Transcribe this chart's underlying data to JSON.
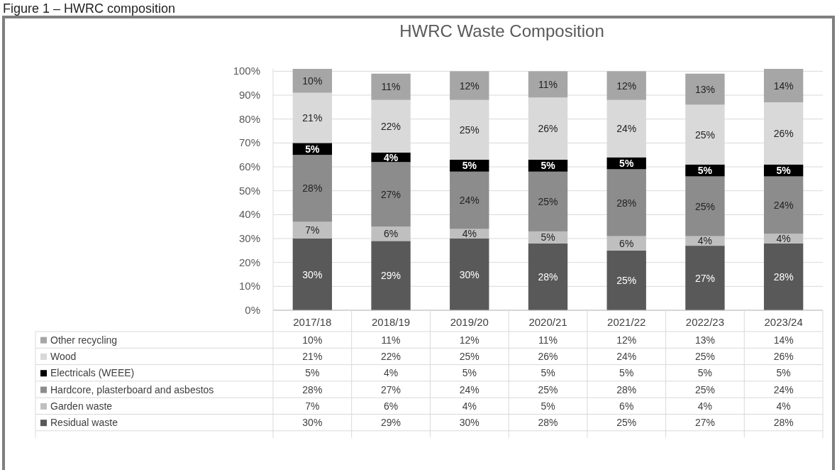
{
  "chart_data": {
    "type": "bar",
    "stacked": true,
    "title": "HWRC Waste Composition",
    "annotations": [
      "Figure 1 – HWRC composition"
    ],
    "categories": [
      "2017/18",
      "2018/19",
      "2019/20",
      "2020/21",
      "2021/22",
      "2022/23",
      "2023/24"
    ],
    "series": [
      {
        "name": "Residual waste",
        "color": "#595959",
        "values": [
          30,
          29,
          30,
          28,
          25,
          27,
          28
        ],
        "value_labels": [
          "30%",
          "29%",
          "30%",
          "28%",
          "25%",
          "27%",
          "28%"
        ]
      },
      {
        "name": "Garden waste",
        "color": "#bfbfbf",
        "values": [
          7,
          6,
          4,
          5,
          6,
          4,
          4
        ],
        "value_labels": [
          "7%",
          "6%",
          "4%",
          "5%",
          "6%",
          "4%",
          "4%"
        ]
      },
      {
        "name": "Hardcore, plasterboard and asbestos",
        "color": "#8c8c8c",
        "values": [
          28,
          27,
          24,
          25,
          28,
          25,
          24
        ],
        "value_labels": [
          "28%",
          "27%",
          "24%",
          "25%",
          "28%",
          "25%",
          "24%"
        ]
      },
      {
        "name": "Electricals (WEEE)",
        "color": "#000000",
        "values": [
          5,
          4,
          5,
          5,
          5,
          5,
          5
        ],
        "value_labels": [
          "5%",
          "4%",
          "5%",
          "5%",
          "5%",
          "5%",
          "5%"
        ]
      },
      {
        "name": "Wood",
        "color": "#d9d9d9",
        "values": [
          21,
          22,
          25,
          26,
          24,
          25,
          26
        ],
        "value_labels": [
          "21%",
          "22%",
          "25%",
          "26%",
          "24%",
          "25%",
          "26%"
        ]
      },
      {
        "name": "Other recycling",
        "color": "#a6a6a6",
        "values": [
          10,
          11,
          12,
          11,
          12,
          13,
          14
        ],
        "value_labels": [
          "10%",
          "11%",
          "12%",
          "11%",
          "12%",
          "13%",
          "14%"
        ]
      }
    ],
    "ylim": [
      0,
      101
    ],
    "yticks": [
      {
        "value": 0,
        "label": "0%"
      },
      {
        "value": 10,
        "label": "10%"
      },
      {
        "value": 20,
        "label": "20%"
      },
      {
        "value": 30,
        "label": "30%"
      },
      {
        "value": 40,
        "label": "40%"
      },
      {
        "value": 50,
        "label": "50%"
      },
      {
        "value": 60,
        "label": "60%"
      },
      {
        "value": 70,
        "label": "70%"
      },
      {
        "value": 80,
        "label": "80%"
      },
      {
        "value": 90,
        "label": "90%"
      },
      {
        "value": 100,
        "label": "100%"
      }
    ],
    "grid": "y",
    "legend": "bottom"
  }
}
